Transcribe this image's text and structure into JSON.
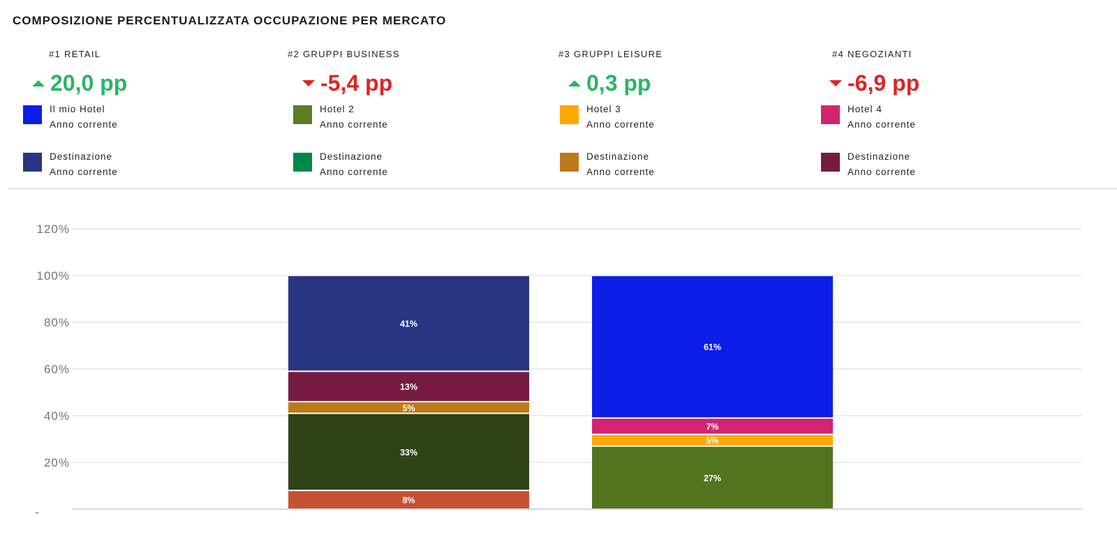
{
  "title": "COMPOSIZIONE PERCENTUALIZZATA OCCUPAZIONE PER MERCATO",
  "kpis": [
    {
      "label": "#1 RETAIL",
      "value": "20,0 pp",
      "direction": "up",
      "color": "#2ab564",
      "legend": [
        {
          "name": "Il mio Hotel",
          "sub": "Anno corrente",
          "color": "#0a1ee6"
        },
        {
          "name": "Destinazione",
          "sub": "Anno corrente",
          "color": "#283583"
        }
      ]
    },
    {
      "label": "#2 GRUPPI BUSINESS",
      "value": "-5,4 pp",
      "direction": "down",
      "color": "#e02323",
      "legend": [
        {
          "name": "Hotel 2",
          "sub": "Anno corrente",
          "color": "#5a7d22"
        },
        {
          "name": "Destinazione",
          "sub": "Anno corrente",
          "color": "#00874a"
        }
      ]
    },
    {
      "label": "#3 GRUPPI LEISURE",
      "value": "0,3 pp",
      "direction": "up",
      "color": "#2ab564",
      "legend": [
        {
          "name": "Hotel 3",
          "sub": "Anno corrente",
          "color": "#ffa800"
        },
        {
          "name": "Destinazione",
          "sub": "Anno corrente",
          "color": "#bd7a1a"
        }
      ]
    },
    {
      "label": "#4 NEGOZIANTI",
      "value": "-6,9 pp",
      "direction": "down",
      "color": "#e02323",
      "legend": [
        {
          "name": "Hotel 4",
          "sub": "Anno corrente",
          "color": "#d42471"
        },
        {
          "name": "Destinazione",
          "sub": "Anno corrente",
          "color": "#761a42"
        }
      ]
    }
  ],
  "chart_data": {
    "type": "bar",
    "stacked": true,
    "ylim": [
      0,
      120
    ],
    "yticks": [
      "-",
      "20%",
      "40%",
      "60%",
      "80%",
      "100%",
      "120%"
    ],
    "grid": true,
    "bars": [
      {
        "segments": [
          {
            "value": 8,
            "label": "8%",
            "color": "#c55133"
          },
          {
            "value": 33,
            "label": "33%",
            "color": "#304218"
          },
          {
            "value": 5,
            "label": "5%",
            "color": "#bd7a1a"
          },
          {
            "value": 13,
            "label": "13%",
            "color": "#761a42"
          },
          {
            "value": 41,
            "label": "41%",
            "color": "#283583"
          }
        ]
      },
      {
        "segments": [
          {
            "value": 27,
            "label": "27%",
            "color": "#52741e"
          },
          {
            "value": 5,
            "label": "5%",
            "color": "#ffa800"
          },
          {
            "value": 7,
            "label": "7%",
            "color": "#d42471"
          },
          {
            "value": 61,
            "label": "61%",
            "color": "#0a1ee6"
          }
        ]
      }
    ]
  }
}
